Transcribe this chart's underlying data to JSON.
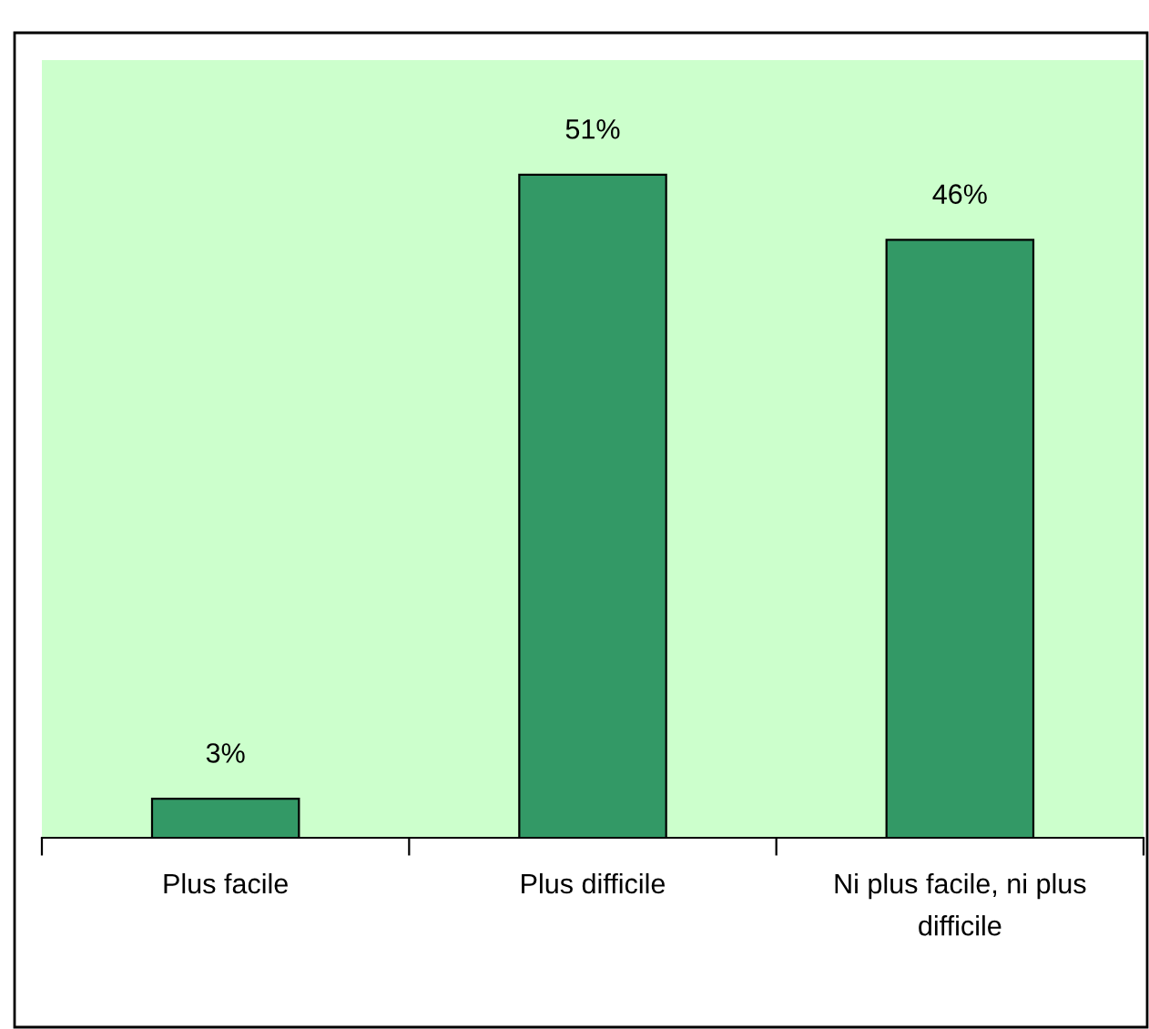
{
  "chart_data": {
    "type": "bar",
    "categories": [
      "Plus facile",
      "Plus difficile",
      "Ni plus facile, ni plus\ndifficile"
    ],
    "values": [
      3,
      51,
      46
    ],
    "value_labels": [
      "3%",
      "51%",
      "46%"
    ],
    "color": "#339966",
    "grid": false,
    "legend": false
  }
}
